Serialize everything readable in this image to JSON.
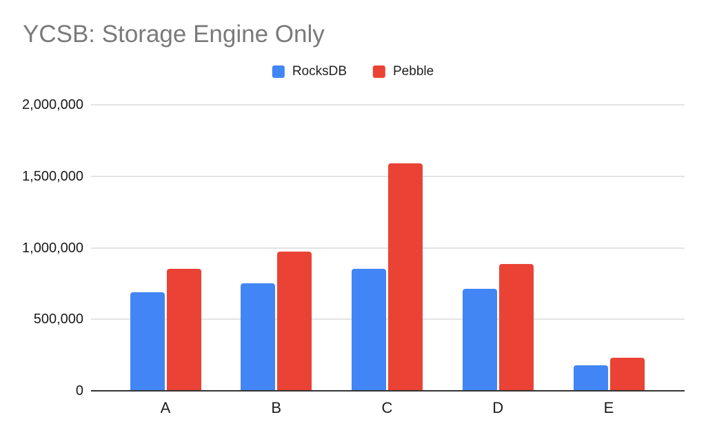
{
  "chart": {
    "title": "YCSB: Storage Engine Only"
  },
  "chart_data": {
    "type": "bar",
    "title": "YCSB: Storage Engine Only",
    "categories": [
      "A",
      "B",
      "C",
      "D",
      "E"
    ],
    "series": [
      {
        "name": "RocksDB",
        "color": "#4285F4",
        "values": [
          690000,
          750000,
          855000,
          715000,
          180000
        ]
      },
      {
        "name": "Pebble",
        "color": "#EA4335",
        "values": [
          855000,
          975000,
          1590000,
          885000,
          230000
        ]
      }
    ],
    "xlabel": "",
    "ylabel": "",
    "ylim": [
      0,
      2000000
    ],
    "yticks": [
      0,
      500000,
      1000000,
      1500000,
      2000000
    ],
    "ytick_labels": [
      "0",
      "500,000",
      "1,000,000",
      "1,500,000",
      "2,000,000"
    ],
    "grid": "horizontal",
    "legend_position": "top-center",
    "background_color": "#ffffff",
    "title_color": "#7a7a7a",
    "axis_label_color": "#1a1a1a",
    "gridline_color": "#e4e4e4",
    "axis_line_color": "#333333"
  }
}
